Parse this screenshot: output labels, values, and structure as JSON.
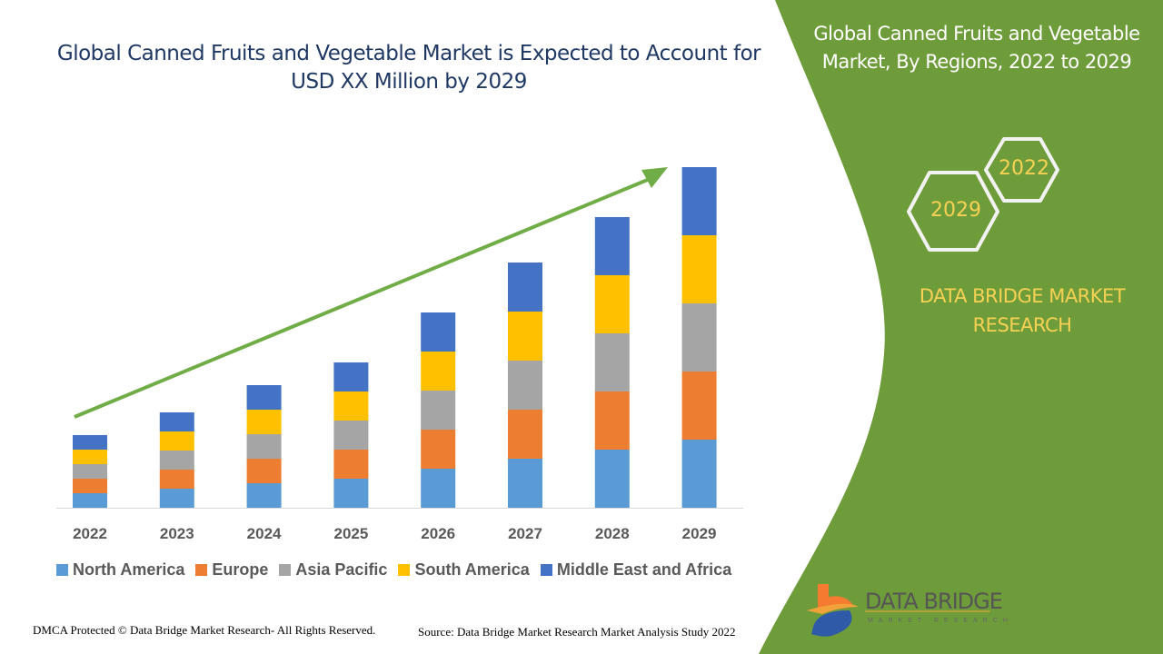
{
  "header": {
    "title": "Global Canned Fruits and Vegetable Market is Expected to Account for USD XX Million by 2029"
  },
  "side_panel": {
    "title": "Global Canned Fruits and Vegetable Market, By Regions, 2022 to 2029",
    "hex_years": [
      "2022",
      "2029"
    ],
    "brand_text": "DATA BRIDGE MARKET RESEARCH",
    "logo_text": "DATA BRIDGE",
    "logo_subtext": "MARKET RESEARCH",
    "panel_color": "#6f9c3a",
    "accent_text_color": "#f7d154"
  },
  "chart_data": {
    "type": "bar",
    "stacked": true,
    "title": "Global Canned Fruits and Vegetable Market is Expected to Account for USD XX Million by 2029",
    "xlabel": "",
    "ylabel": "",
    "y_axis_shown": false,
    "grid": false,
    "legend_position": "bottom",
    "trend_arrow": true,
    "trend_arrow_color": "#70ad47",
    "categories": [
      "2022",
      "2023",
      "2024",
      "2025",
      "2026",
      "2027",
      "2028",
      "2029"
    ],
    "series": [
      {
        "name": "North America",
        "color": "#5b9bd5",
        "values": [
          16,
          21,
          27,
          32,
          43,
          54,
          64,
          75
        ]
      },
      {
        "name": "Europe",
        "color": "#ed7d31",
        "values": [
          16,
          21,
          27,
          32,
          43,
          54,
          64,
          75
        ]
      },
      {
        "name": "Asia Pacific",
        "color": "#a5a5a5",
        "values": [
          16,
          21,
          27,
          32,
          43,
          54,
          64,
          75
        ]
      },
      {
        "name": "South America",
        "color": "#ffc000",
        "values": [
          16,
          21,
          27,
          32,
          43,
          54,
          64,
          75
        ]
      },
      {
        "name": "Middle East and Africa",
        "color": "#4472c4",
        "values": [
          16,
          21,
          27,
          32,
          43,
          54,
          64,
          75
        ]
      }
    ]
  },
  "footer": {
    "copyright": "DMCA Protected © Data Bridge Market Research- All Rights Reserved.",
    "source": "Source: Data Bridge Market Research Market Analysis Study 2022"
  }
}
